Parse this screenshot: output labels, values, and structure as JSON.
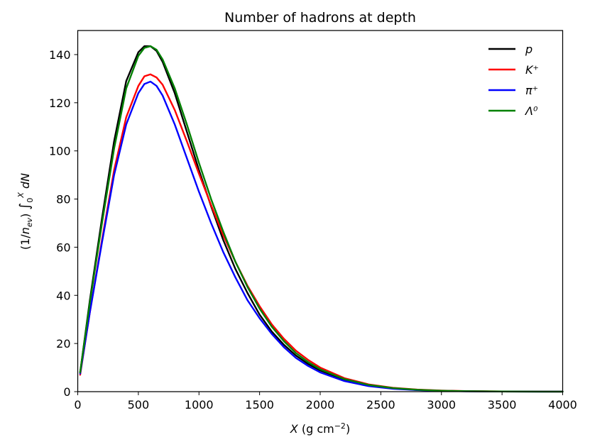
{
  "chart_data": {
    "type": "line",
    "title": "Number of hadrons at depth",
    "xlabel": "X (g cm⁻²)",
    "ylabel": "(1/n_ev) ∫₀ˣ dN",
    "xlim": [
      0,
      4000
    ],
    "ylim": [
      0,
      150
    ],
    "x_ticks": [
      0,
      500,
      1000,
      1500,
      2000,
      2500,
      3000,
      3500,
      4000
    ],
    "y_ticks": [
      0,
      20,
      40,
      60,
      80,
      100,
      120,
      140
    ],
    "grid": false,
    "legend_position": "top-right",
    "x": [
      20,
      100,
      200,
      300,
      400,
      500,
      550,
      600,
      650,
      700,
      800,
      900,
      1000,
      1100,
      1200,
      1300,
      1400,
      1500,
      1600,
      1700,
      1800,
      1900,
      2000,
      2200,
      2400,
      2600,
      2800,
      3000,
      3200,
      3500,
      4000
    ],
    "series": [
      {
        "name": "p",
        "color": "#000000",
        "values": [
          8,
          38,
          72,
          104,
          129,
          141,
          143.5,
          143.5,
          141.5,
          137,
          124,
          108,
          92,
          77,
          63,
          51,
          41,
          32,
          25,
          19.5,
          15,
          11.5,
          8.8,
          4.9,
          2.6,
          1.4,
          0.7,
          0.35,
          0.18,
          0.06,
          0.01
        ]
      },
      {
        "name": "K⁺",
        "color": "#ff0000",
        "values": [
          7,
          33,
          63,
          92,
          114,
          127,
          131,
          131.8,
          130.5,
          127.5,
          117,
          104,
          90.5,
          77.5,
          65,
          54,
          44,
          35.5,
          28,
          22,
          17,
          13.2,
          10,
          5.6,
          3,
          1.6,
          0.85,
          0.45,
          0.23,
          0.08,
          0.02
        ]
      },
      {
        "name": "π⁺",
        "color": "#0000ff",
        "values": [
          7.5,
          33,
          62,
          90,
          111,
          124,
          127.8,
          128.8,
          127,
          123,
          111,
          97,
          83,
          70,
          58,
          47.5,
          38,
          30.5,
          24,
          18.5,
          14,
          10.7,
          8,
          4.4,
          2.3,
          1.2,
          0.63,
          0.32,
          0.16,
          0.06,
          0.01
        ]
      },
      {
        "name": "Λ⁰",
        "color": "#008000",
        "values": [
          8,
          37,
          70,
          101,
          126,
          139.5,
          142.8,
          143.5,
          142,
          138,
          126,
          111,
          95,
          80,
          66.5,
          54,
          43.5,
          34.5,
          27,
          21,
          16,
          12.3,
          9.3,
          5.2,
          2.8,
          1.5,
          0.78,
          0.4,
          0.2,
          0.07,
          0.01
        ]
      }
    ]
  }
}
